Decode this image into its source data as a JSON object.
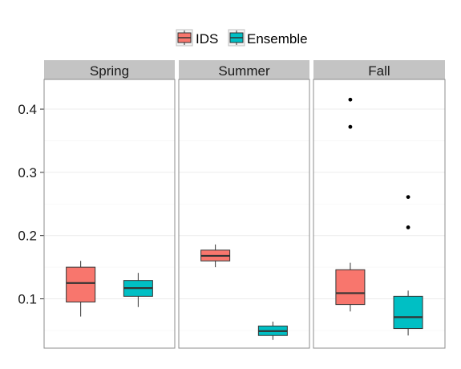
{
  "chart_data": {
    "type": "boxplot",
    "legend": {
      "position": "top",
      "items": [
        {
          "label": "IDS",
          "color": "#F8766D"
        },
        {
          "label": "Ensemble",
          "color": "#00BFC4"
        }
      ]
    },
    "facets": [
      {
        "label": "Spring",
        "boxes": [
          {
            "series": "IDS",
            "min": 0.072,
            "q1": 0.095,
            "median": 0.125,
            "q3": 0.15,
            "max": 0.16,
            "outliers": []
          },
          {
            "series": "Ensemble",
            "min": 0.087,
            "q1": 0.104,
            "median": 0.117,
            "q3": 0.129,
            "max": 0.141,
            "outliers": []
          }
        ]
      },
      {
        "label": "Summer",
        "boxes": [
          {
            "series": "IDS",
            "min": 0.15,
            "q1": 0.16,
            "median": 0.168,
            "q3": 0.177,
            "max": 0.186,
            "outliers": []
          },
          {
            "series": "Ensemble",
            "min": 0.035,
            "q1": 0.042,
            "median": 0.049,
            "q3": 0.057,
            "max": 0.064,
            "outliers": []
          }
        ]
      },
      {
        "label": "Fall",
        "boxes": [
          {
            "series": "IDS",
            "min": 0.08,
            "q1": 0.091,
            "median": 0.109,
            "q3": 0.146,
            "max": 0.157,
            "outliers": [
              0.415,
              0.372
            ]
          },
          {
            "series": "Ensemble",
            "min": 0.042,
            "q1": 0.053,
            "median": 0.071,
            "q3": 0.104,
            "max": 0.113,
            "outliers": [
              0.261,
              0.213
            ]
          }
        ]
      }
    ],
    "y_ticks": [
      "0.1",
      "0.2",
      "0.3",
      "0.4"
    ],
    "y_tick_values": [
      0.1,
      0.2,
      0.3,
      0.4
    ],
    "ylim": [
      0.022,
      0.447
    ],
    "xlabel": "",
    "ylabel": "",
    "grid": true
  }
}
